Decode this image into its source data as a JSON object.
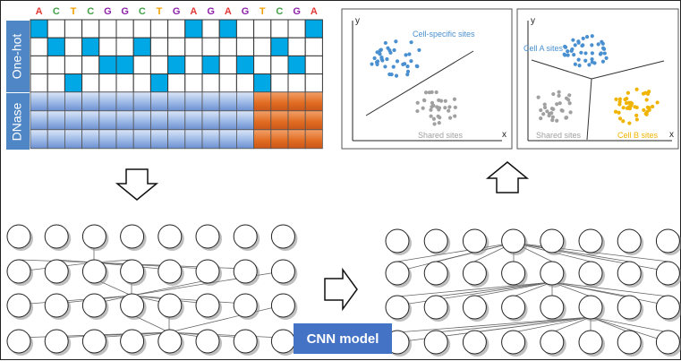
{
  "sequence": [
    {
      "base": "A",
      "color": "#e53935"
    },
    {
      "base": "C",
      "color": "#43a047"
    },
    {
      "base": "T",
      "color": "#f0a000"
    },
    {
      "base": "C",
      "color": "#43a047"
    },
    {
      "base": "G",
      "color": "#8e24aa"
    },
    {
      "base": "G",
      "color": "#8e24aa"
    },
    {
      "base": "C",
      "color": "#43a047"
    },
    {
      "base": "T",
      "color": "#f0a000"
    },
    {
      "base": "G",
      "color": "#8e24aa"
    },
    {
      "base": "A",
      "color": "#e53935"
    },
    {
      "base": "G",
      "color": "#8e24aa"
    },
    {
      "base": "A",
      "color": "#e53935"
    },
    {
      "base": "G",
      "color": "#8e24aa"
    },
    {
      "base": "T",
      "color": "#f0a000"
    },
    {
      "base": "C",
      "color": "#43a047"
    },
    {
      "base": "G",
      "color": "#8e24aa"
    },
    {
      "base": "A",
      "color": "#e53935"
    }
  ],
  "one_hot_label": "One-hot",
  "dnase_label": "DNase",
  "one_hot_rows": [
    [
      1,
      0,
      0,
      0,
      0,
      0,
      0,
      0,
      0,
      1,
      0,
      1,
      0,
      0,
      0,
      0,
      1
    ],
    [
      0,
      1,
      0,
      1,
      0,
      0,
      1,
      0,
      0,
      0,
      0,
      0,
      0,
      0,
      1,
      0,
      0
    ],
    [
      0,
      0,
      0,
      0,
      1,
      1,
      0,
      0,
      1,
      0,
      1,
      0,
      1,
      0,
      0,
      1,
      0
    ],
    [
      0,
      0,
      1,
      0,
      0,
      0,
      0,
      1,
      0,
      0,
      0,
      0,
      0,
      1,
      0,
      0,
      0
    ]
  ],
  "dnase_split_index": 13,
  "colors": {
    "one_hot_fill": "#00a9e6",
    "label_bg": "#4f86c6",
    "dnase_blue": "#8fb0e0",
    "dnase_orange": "#e6782e",
    "cnn_box": "#4472c4",
    "plot_blue": "#4a90d0",
    "plot_gray": "#a0a0a0",
    "plot_yellow": "#f0b400"
  },
  "plot_left": {
    "y_axis": "y",
    "x_axis": "x",
    "cluster_top": "Cell-specific  sites",
    "cluster_bottom": "Shared sites"
  },
  "plot_right": {
    "y_axis": "y",
    "x_axis": "x",
    "cluster_a": "Cell A sites",
    "cluster_shared": "Shared sites",
    "cluster_b": "Cell B sites"
  },
  "model_label": "CNN model"
}
